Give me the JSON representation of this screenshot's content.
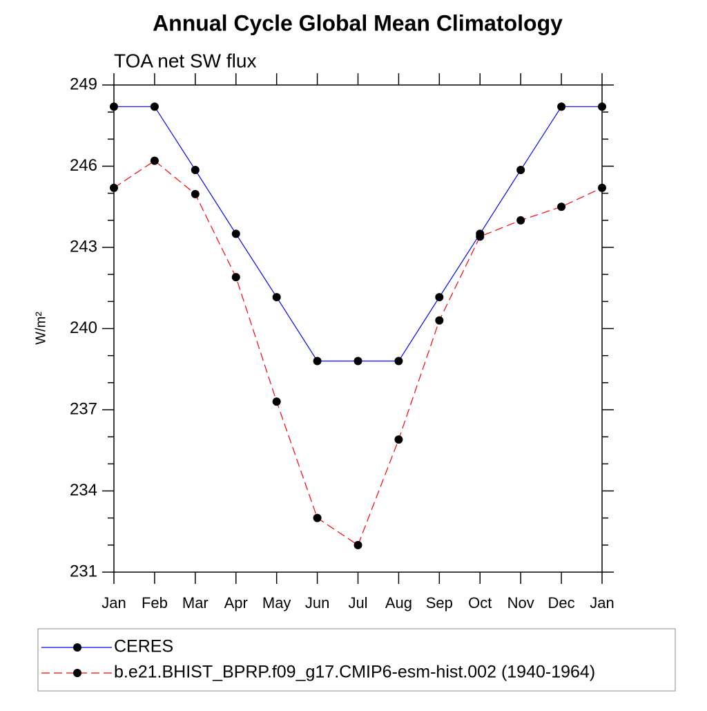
{
  "chart_data": {
    "type": "line",
    "title": "Annual Cycle Global Mean Climatology",
    "subtitle": "TOA net SW flux",
    "y_label": "W/m²",
    "categories": [
      "Jan",
      "Feb",
      "Mar",
      "Apr",
      "May",
      "Jun",
      "Jul",
      "Aug",
      "Sep",
      "Oct",
      "Nov",
      "Dec",
      "Jan"
    ],
    "series": [
      {
        "name": "CERES",
        "color": "#0000ff",
        "dashed": false,
        "values": [
          248.2,
          248.2,
          245.86,
          243.5,
          241.16,
          238.8,
          238.8,
          238.8,
          241.16,
          243.5,
          245.86,
          248.2,
          248.2
        ]
      },
      {
        "name": "b.e21.BHIST_BPRP.f09_g17.CMIP6-esm-hist.002 (1940-1964)",
        "color": "#ff0000",
        "dashed": true,
        "values": [
          245.2,
          246.2,
          244.97,
          241.9,
          237.3,
          233.0,
          232.0,
          235.9,
          240.3,
          243.4,
          244.0,
          244.5,
          245.2
        ]
      }
    ],
    "marker_color": "#000000",
    "ylim": [
      231,
      249
    ],
    "yticks": [
      231,
      234,
      237,
      240,
      243,
      246,
      249
    ],
    "yminorticks": [
      232,
      233,
      235,
      236,
      238,
      239,
      241,
      242,
      244,
      245,
      247,
      248
    ]
  }
}
